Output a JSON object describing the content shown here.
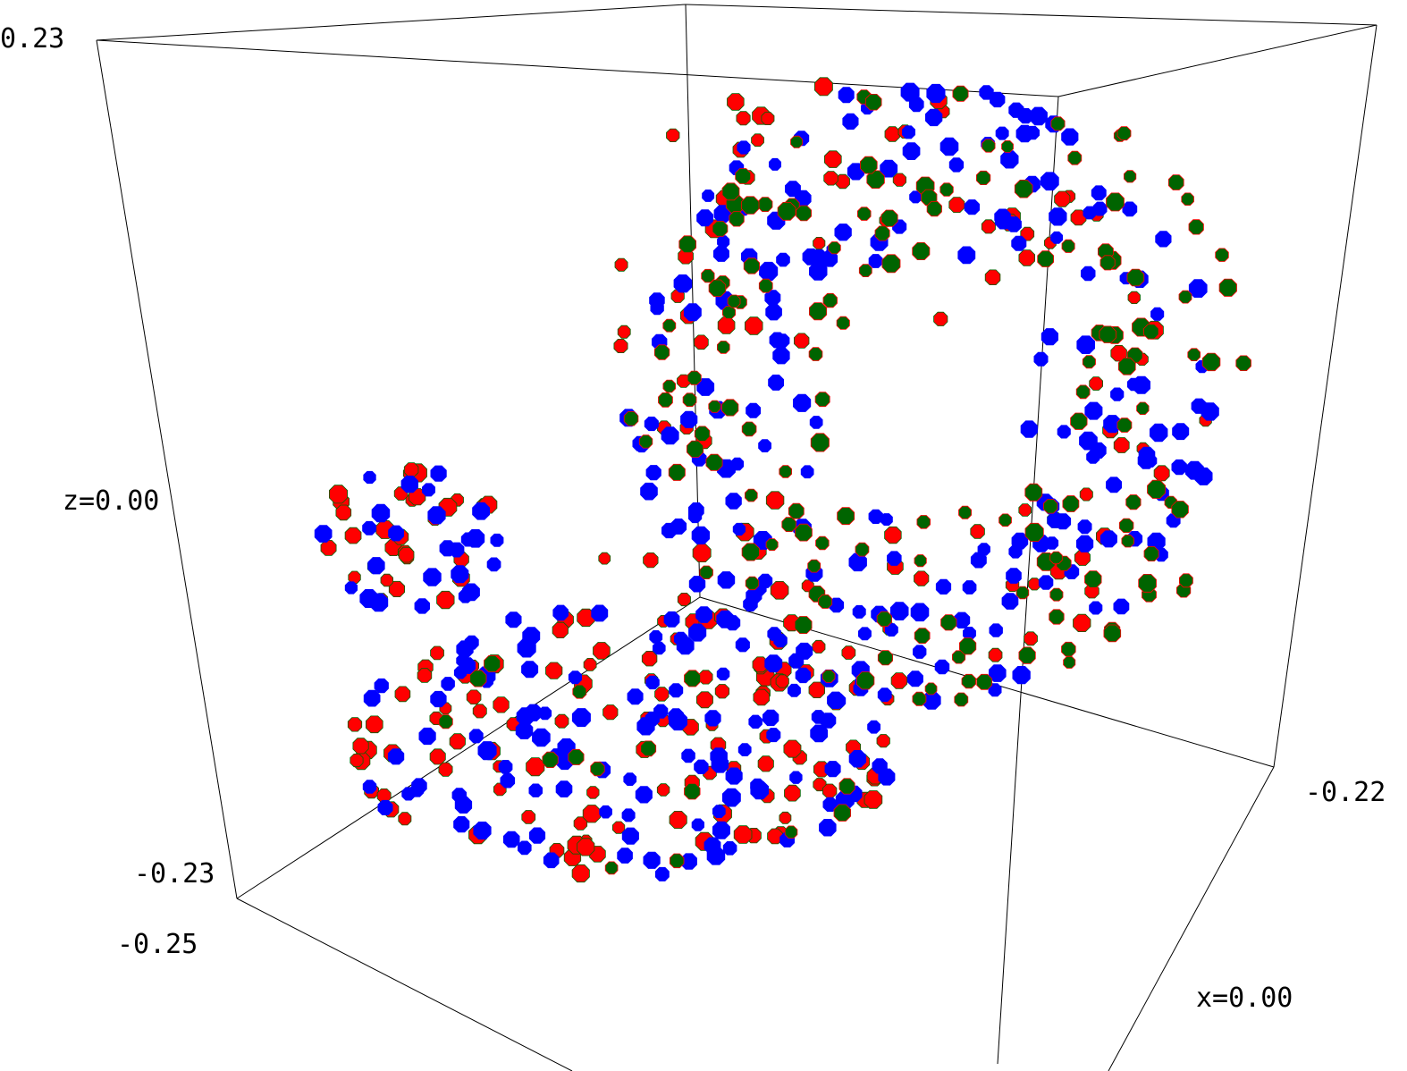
{
  "chart_data": {
    "type": "scatter",
    "projection": "3d",
    "title": "",
    "axis_labels": {
      "z_top": "0.23",
      "z_mid": "z=0.00",
      "z_bottom": "-0.23",
      "y_front": "-0.25",
      "x_far": "-0.22",
      "x_mid": "x=0.00"
    },
    "grid": false,
    "legend": "none",
    "series": [
      {
        "color": "#ff0000",
        "marker": "octagon",
        "seed": 101,
        "points": 230
      },
      {
        "color": "#0000ff",
        "marker": "octagon",
        "seed": 202,
        "points": 340
      },
      {
        "color": "#006400",
        "marker": "octagon",
        "seed": 303,
        "points": 170
      }
    ],
    "background": "#ffffff"
  }
}
